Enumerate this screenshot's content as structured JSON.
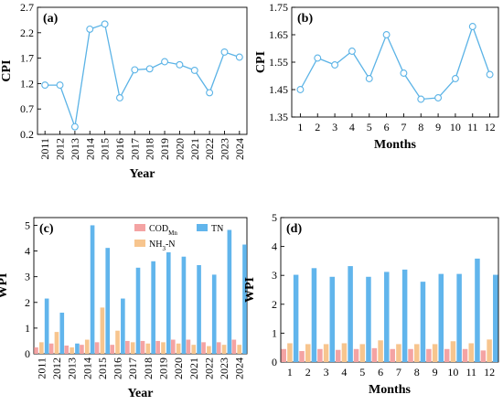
{
  "colors": {
    "line": "#5BB3E6",
    "cod": "#F4A3A3",
    "nh3": "#F7C58E",
    "tn": "#61B5EC",
    "axis": "#000000"
  },
  "chart_data": [
    {
      "id": "a",
      "panel_label": "(a)",
      "type": "line",
      "marker": "circle",
      "xlabel": "Year",
      "ylabel": "CPI",
      "xticklabel_rotation": "vertical",
      "ylim": [
        0.2,
        2.7
      ],
      "yticks": [
        0.2,
        0.7,
        1.2,
        1.7,
        2.2,
        2.7
      ],
      "ytick_labels": [
        "0.2",
        "0.7",
        "1.2",
        "1.7",
        "2.2",
        "2.7"
      ],
      "categories": [
        "2011",
        "2012",
        "2013",
        "2014",
        "2015",
        "2016",
        "2017",
        "2018",
        "2019",
        "2020",
        "2021",
        "2022",
        "2023",
        "2024"
      ],
      "values": [
        1.17,
        1.17,
        0.35,
        2.27,
        2.37,
        0.92,
        1.47,
        1.49,
        1.63,
        1.57,
        1.46,
        1.02,
        1.82,
        1.72
      ]
    },
    {
      "id": "b",
      "panel_label": "(b)",
      "type": "line",
      "marker": "circle",
      "xlabel": "Months",
      "ylabel": "CPI",
      "ylim": [
        1.35,
        1.75
      ],
      "yticks": [
        1.35,
        1.45,
        1.55,
        1.65,
        1.75
      ],
      "ytick_labels": [
        "1.35",
        "1.45",
        "1.55",
        "1.65",
        "1.75"
      ],
      "categories": [
        "1",
        "2",
        "3",
        "4",
        "5",
        "6",
        "7",
        "8",
        "9",
        "10",
        "11",
        "12"
      ],
      "values": [
        1.45,
        1.565,
        1.54,
        1.59,
        1.49,
        1.65,
        1.51,
        1.415,
        1.42,
        1.49,
        1.68,
        1.505
      ]
    },
    {
      "id": "c",
      "panel_label": "(c)",
      "type": "bar",
      "xlabel": "Year",
      "ylabel": "WPI",
      "xticklabel_rotation": "vertical",
      "ylim": [
        0,
        5.3
      ],
      "yticks": [
        0,
        1,
        2,
        3,
        4,
        5
      ],
      "ytick_labels": [
        "0",
        "1",
        "2",
        "3",
        "4",
        "5"
      ],
      "legend": {
        "placement": "top-right",
        "items": [
          {
            "key": "cod",
            "text": "COD",
            "sub": "Mn"
          },
          {
            "key": "tn",
            "text": "TN",
            "sub": ""
          },
          {
            "key": "nh3",
            "text": "NH",
            "sub": "3",
            "suffix": "-N"
          }
        ]
      },
      "categories": [
        "2011",
        "2012",
        "2013",
        "2014",
        "2015",
        "2016",
        "2017",
        "2018",
        "2019",
        "2020",
        "2021",
        "2022",
        "2023",
        "2024"
      ],
      "series": [
        {
          "key": "cod",
          "values": [
            0.25,
            0.4,
            0.32,
            0.35,
            0.45,
            0.35,
            0.5,
            0.5,
            0.5,
            0.55,
            0.55,
            0.45,
            0.45,
            0.55
          ]
        },
        {
          "key": "nh3",
          "values": [
            0.45,
            0.85,
            0.25,
            0.55,
            1.8,
            0.9,
            0.45,
            0.4,
            0.45,
            0.4,
            0.35,
            0.3,
            0.35,
            0.35
          ]
        },
        {
          "key": "tn",
          "values": [
            2.15,
            1.6,
            0.4,
            5.0,
            4.12,
            2.15,
            3.35,
            3.6,
            3.95,
            3.78,
            3.45,
            3.08,
            4.82,
            4.25
          ]
        }
      ]
    },
    {
      "id": "d",
      "panel_label": "(d)",
      "type": "bar",
      "xlabel": "Months",
      "ylabel": "WPI",
      "ylim": [
        0,
        5
      ],
      "yticks": [
        0,
        1,
        2,
        3,
        4,
        5
      ],
      "ytick_labels": [
        "0",
        "1",
        "2",
        "3",
        "4",
        "5"
      ],
      "categories": [
        "1",
        "2",
        "3",
        "4",
        "5",
        "6",
        "7",
        "8",
        "9",
        "10",
        "11",
        "12"
      ],
      "series": [
        {
          "key": "cod",
          "values": [
            0.45,
            0.38,
            0.45,
            0.42,
            0.45,
            0.48,
            0.45,
            0.45,
            0.45,
            0.45,
            0.45,
            0.4
          ]
        },
        {
          "key": "nh3",
          "values": [
            0.65,
            0.62,
            0.62,
            0.65,
            0.62,
            0.75,
            0.62,
            0.62,
            0.62,
            0.72,
            0.65,
            0.78
          ]
        },
        {
          "key": "tn",
          "values": [
            3.02,
            3.25,
            2.95,
            3.32,
            2.95,
            3.12,
            3.2,
            2.78,
            3.05,
            3.05,
            3.58,
            3.02
          ]
        }
      ]
    }
  ]
}
